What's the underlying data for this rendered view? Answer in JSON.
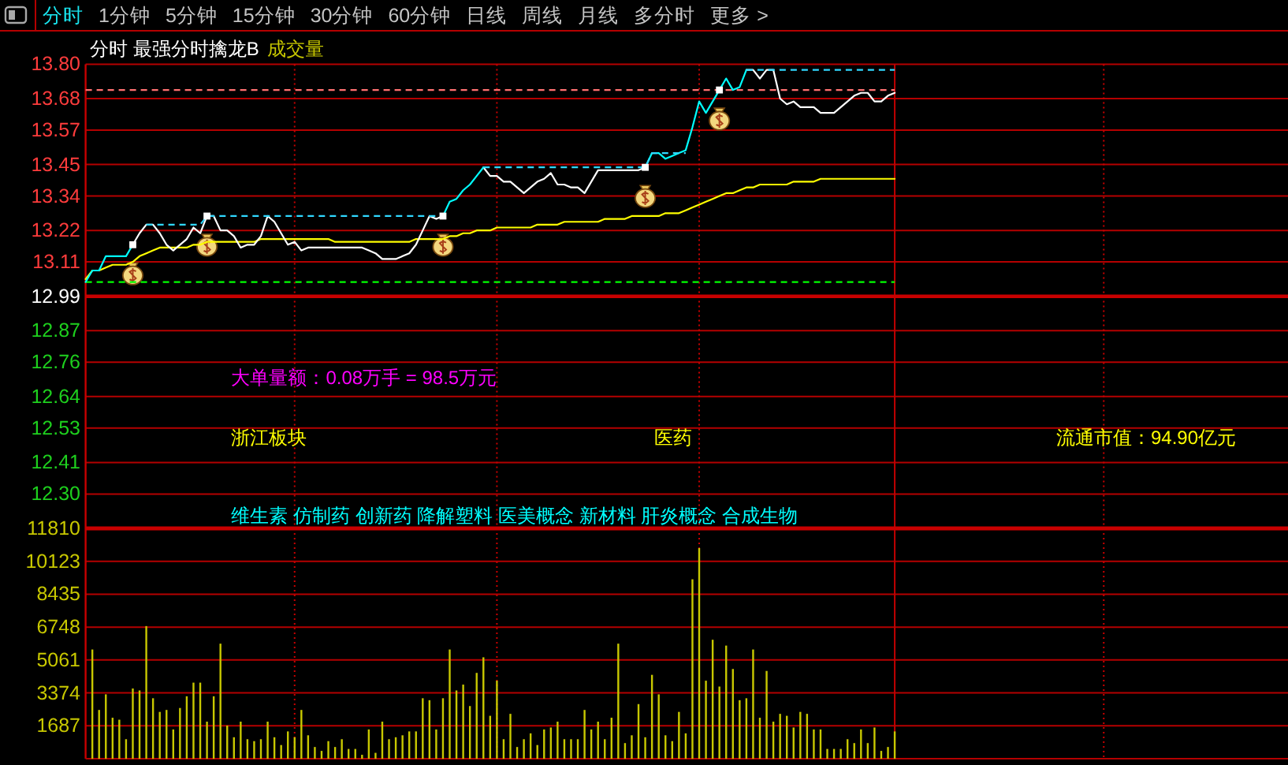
{
  "chart_data": [
    {
      "type": "line",
      "title": "分时 最强分时擒龙B",
      "categories": [
        null,
        null,
        null,
        null,
        null,
        null,
        null,
        null,
        null,
        null,
        null,
        null,
        null,
        null,
        null,
        null,
        null,
        null,
        null,
        null,
        null,
        null,
        null,
        null,
        null,
        null,
        null,
        null,
        null,
        null,
        null,
        null,
        null,
        null,
        null,
        null,
        null,
        null,
        null,
        null,
        null,
        null,
        null,
        null,
        null,
        null,
        null,
        null,
        null,
        null,
        null,
        null,
        null,
        null,
        null,
        null,
        null,
        null,
        null,
        null,
        null,
        null,
        null,
        null,
        null,
        null,
        null,
        null,
        null,
        null,
        null,
        null,
        null,
        null,
        null,
        null,
        null,
        null,
        null,
        null,
        null,
        null,
        null,
        null,
        null,
        null,
        null,
        null,
        null,
        null,
        null,
        null,
        null,
        null,
        null,
        null,
        null,
        null,
        null,
        null,
        null,
        null,
        null,
        null,
        null,
        null,
        null,
        null,
        null,
        null,
        null,
        null,
        null,
        null,
        null,
        null,
        null,
        null,
        null,
        null,
        null,
        null,
        null,
        null,
        null,
        null,
        null,
        null,
        null,
        null,
        null,
        null,
        null,
        null,
        null,
        null,
        null,
        null,
        null,
        null,
        null,
        null,
        null,
        null,
        null,
        null,
        null,
        null,
        null,
        null,
        null,
        null,
        null,
        null,
        null,
        null,
        null,
        null,
        null,
        null,
        null,
        null,
        null,
        null,
        null,
        null,
        null,
        null,
        null,
        null,
        null,
        null,
        null,
        null,
        null,
        null,
        null,
        null,
        null
      ],
      "series": [
        {
          "color": "#ff7070",
          "line_style": "dashed",
          "values": [
            13.71,
            13.71,
            13.71,
            13.71,
            13.71,
            13.71,
            13.71,
            13.71,
            13.71,
            13.71,
            13.71,
            13.71,
            13.71,
            13.71,
            13.71,
            13.71,
            13.71,
            13.71,
            13.71,
            13.71,
            13.71,
            13.71,
            13.71,
            13.71,
            13.71,
            13.71,
            13.71,
            13.71,
            13.71,
            13.71,
            13.71,
            13.71,
            13.71,
            13.71,
            13.71,
            13.71,
            13.71,
            13.71,
            13.71,
            13.71,
            13.71,
            13.71,
            13.71,
            13.71,
            13.71,
            13.71,
            13.71,
            13.71,
            13.71,
            13.71,
            13.71,
            13.71,
            13.71,
            13.71,
            13.71,
            13.71,
            13.71,
            13.71,
            13.71,
            13.71,
            13.71,
            13.71,
            13.71,
            13.71,
            13.71,
            13.71,
            13.71,
            13.71,
            13.71,
            13.71,
            13.71,
            13.71,
            13.71,
            13.71,
            13.71,
            13.71,
            13.71,
            13.71,
            13.71,
            13.71,
            13.71,
            13.71,
            13.71,
            13.71,
            13.71,
            13.71,
            13.71,
            13.71,
            13.71,
            13.71,
            13.71,
            13.71,
            13.71,
            13.71,
            13.71,
            13.71,
            13.71,
            13.71,
            13.71,
            13.71,
            13.71,
            13.71,
            13.71,
            13.71,
            13.71,
            13.71,
            13.71,
            13.71,
            13.71,
            13.71,
            13.71,
            13.71,
            13.71,
            13.71,
            13.71,
            13.71,
            13.71,
            13.71,
            13.71,
            13.71,
            13.71,
            null,
            null,
            null,
            null,
            null,
            null,
            null,
            null,
            null,
            null,
            null,
            null,
            null,
            null,
            null,
            null,
            null,
            null,
            null,
            null,
            null,
            null,
            null,
            null,
            null,
            null,
            null,
            null,
            null,
            null,
            null,
            null,
            null,
            null,
            null,
            null,
            null,
            null,
            null,
            null,
            null,
            null,
            null,
            null,
            null,
            null,
            null,
            null,
            null,
            null,
            null,
            null,
            null,
            null,
            null,
            null,
            null,
            null
          ]
        },
        {
          "color": "#00ff00",
          "line_style": "dashed",
          "values": [
            13.04,
            13.04,
            13.04,
            13.04,
            13.04,
            13.04,
            13.04,
            13.04,
            13.04,
            13.04,
            13.04,
            13.04,
            13.04,
            13.04,
            13.04,
            13.04,
            13.04,
            13.04,
            13.04,
            13.04,
            13.04,
            13.04,
            13.04,
            13.04,
            13.04,
            13.04,
            13.04,
            13.04,
            13.04,
            13.04,
            13.04,
            13.04,
            13.04,
            13.04,
            13.04,
            13.04,
            13.04,
            13.04,
            13.04,
            13.04,
            13.04,
            13.04,
            13.04,
            13.04,
            13.04,
            13.04,
            13.04,
            13.04,
            13.04,
            13.04,
            13.04,
            13.04,
            13.04,
            13.04,
            13.04,
            13.04,
            13.04,
            13.04,
            13.04,
            13.04,
            13.04,
            13.04,
            13.04,
            13.04,
            13.04,
            13.04,
            13.04,
            13.04,
            13.04,
            13.04,
            13.04,
            13.04,
            13.04,
            13.04,
            13.04,
            13.04,
            13.04,
            13.04,
            13.04,
            13.04,
            13.04,
            13.04,
            13.04,
            13.04,
            13.04,
            13.04,
            13.04,
            13.04,
            13.04,
            13.04,
            13.04,
            13.04,
            13.04,
            13.04,
            13.04,
            13.04,
            13.04,
            13.04,
            13.04,
            13.04,
            13.04,
            13.04,
            13.04,
            13.04,
            13.04,
            13.04,
            13.04,
            13.04,
            13.04,
            13.04,
            13.04,
            13.04,
            13.04,
            13.04,
            13.04,
            13.04,
            13.04,
            13.04,
            13.04,
            13.04,
            13.04,
            null,
            null,
            null,
            null,
            null,
            null,
            null,
            null,
            null,
            null,
            null,
            null,
            null,
            null,
            null,
            null,
            null,
            null,
            null,
            null,
            null,
            null,
            null,
            null,
            null,
            null,
            null,
            null,
            null,
            null,
            null,
            null,
            null,
            null,
            null,
            null,
            null,
            null,
            null,
            null,
            null,
            null,
            null,
            null,
            null,
            null,
            null,
            null,
            null,
            null,
            null,
            null,
            null,
            null,
            null,
            null,
            null,
            null
          ]
        },
        {
          "color": "#ffff00",
          "values": [
            13.05,
            13.08,
            13.08,
            13.09,
            13.1,
            13.1,
            13.1,
            13.11,
            13.13,
            13.14,
            13.15,
            13.16,
            13.16,
            13.16,
            13.16,
            13.16,
            13.17,
            13.17,
            13.18,
            13.18,
            13.18,
            13.18,
            13.18,
            13.18,
            13.18,
            13.18,
            13.19,
            13.19,
            13.19,
            13.19,
            13.19,
            13.19,
            13.19,
            13.19,
            13.19,
            13.19,
            13.19,
            13.18,
            13.18,
            13.18,
            13.18,
            13.18,
            13.18,
            13.18,
            13.18,
            13.18,
            13.18,
            13.18,
            13.18,
            13.19,
            13.19,
            13.19,
            13.19,
            13.19,
            13.2,
            13.2,
            13.21,
            13.21,
            13.22,
            13.22,
            13.22,
            13.23,
            13.23,
            13.23,
            13.23,
            13.23,
            13.23,
            13.24,
            13.24,
            13.24,
            13.24,
            13.25,
            13.25,
            13.25,
            13.25,
            13.25,
            13.25,
            13.26,
            13.26,
            13.26,
            13.26,
            13.27,
            13.27,
            13.27,
            13.27,
            13.27,
            13.28,
            13.28,
            13.28,
            13.29,
            13.3,
            13.31,
            13.32,
            13.33,
            13.34,
            13.35,
            13.35,
            13.36,
            13.37,
            13.37,
            13.38,
            13.38,
            13.38,
            13.38,
            13.38,
            13.39,
            13.39,
            13.39,
            13.39,
            13.4,
            13.4,
            13.4,
            13.4,
            13.4,
            13.4,
            13.4,
            13.4,
            13.4,
            13.4,
            13.4,
            13.4,
            null,
            null,
            null,
            null,
            null,
            null,
            null,
            null,
            null,
            null,
            null,
            null,
            null,
            null,
            null,
            null,
            null,
            null,
            null,
            null,
            null,
            null,
            null,
            null,
            null,
            null,
            null,
            null,
            null,
            null,
            null,
            null,
            null,
            null,
            null,
            null,
            null,
            null,
            null,
            null,
            null,
            null,
            null,
            null,
            null,
            null,
            null,
            null,
            null,
            null,
            null,
            null,
            null,
            null,
            null,
            null,
            null,
            null
          ]
        },
        {
          "color": "#ffffff",
          "values": [
            null,
            null,
            null,
            null,
            null,
            null,
            null,
            13.17,
            13.21,
            13.24,
            13.24,
            13.21,
            13.17,
            13.15,
            13.17,
            13.19,
            13.23,
            13.21,
            13.27,
            13.27,
            13.22,
            13.22,
            13.2,
            13.16,
            13.17,
            13.17,
            13.2,
            13.27,
            13.25,
            13.21,
            13.17,
            13.18,
            13.15,
            13.16,
            13.16,
            13.16,
            13.16,
            13.16,
            13.16,
            13.16,
            13.16,
            13.16,
            13.15,
            13.14,
            13.12,
            13.12,
            13.12,
            13.13,
            13.14,
            13.17,
            13.22,
            13.27,
            13.26,
            13.27,
            null,
            null,
            null,
            null,
            null,
            13.44,
            13.41,
            13.41,
            13.39,
            13.39,
            13.37,
            13.35,
            13.37,
            13.39,
            13.4,
            13.42,
            13.38,
            13.38,
            13.37,
            13.37,
            13.35,
            13.39,
            13.43,
            13.43,
            13.43,
            13.43,
            13.43,
            13.43,
            13.43,
            13.44,
            null,
            null,
            null,
            null,
            null,
            null,
            null,
            null,
            null,
            null,
            null,
            null,
            null,
            null,
            13.78,
            13.78,
            13.75,
            13.78,
            13.78,
            13.68,
            13.66,
            13.67,
            13.65,
            13.65,
            13.65,
            13.63,
            13.63,
            13.63,
            13.65,
            13.67,
            13.69,
            13.7,
            13.7,
            13.67,
            13.67,
            13.69,
            13.7,
            null,
            null,
            null,
            null,
            null,
            null,
            null,
            null,
            null,
            null,
            null,
            null,
            null,
            null,
            null,
            null,
            null,
            null,
            null,
            null,
            null,
            null,
            null,
            null,
            null,
            null,
            null,
            null,
            null,
            null,
            null,
            null,
            null,
            null,
            null,
            null,
            null,
            null,
            null,
            null,
            null,
            null,
            null,
            null,
            null,
            null,
            null,
            null,
            null,
            null,
            null,
            null,
            null,
            null,
            null,
            null,
            null,
            null
          ]
        },
        {
          "color": "#00ffff",
          "values": [
            13.04,
            13.08,
            13.08,
            13.13,
            13.13,
            13.13,
            13.13,
            13.17,
            null,
            null,
            null,
            null,
            null,
            null,
            null,
            null,
            null,
            null,
            null,
            null,
            null,
            null,
            null,
            null,
            null,
            null,
            null,
            null,
            null,
            null,
            null,
            null,
            null,
            null,
            null,
            null,
            null,
            null,
            null,
            null,
            null,
            null,
            null,
            null,
            null,
            null,
            null,
            null,
            null,
            null,
            null,
            null,
            null,
            13.27,
            13.32,
            13.33,
            13.36,
            13.38,
            13.41,
            13.44,
            null,
            null,
            null,
            null,
            null,
            null,
            null,
            null,
            null,
            null,
            null,
            null,
            null,
            null,
            null,
            null,
            null,
            null,
            null,
            null,
            null,
            null,
            null,
            13.44,
            13.49,
            13.49,
            13.47,
            13.48,
            13.49,
            13.5,
            13.58,
            13.67,
            13.63,
            13.67,
            13.71,
            13.75,
            13.71,
            13.72,
            13.78,
            null,
            null,
            null,
            null,
            null,
            null,
            null,
            null,
            null,
            null,
            null,
            null,
            null,
            null,
            null,
            null,
            null,
            null,
            null,
            null,
            null,
            null,
            null,
            null,
            null,
            null,
            null,
            null,
            null,
            null,
            null,
            null,
            null,
            null,
            null,
            null,
            null,
            null,
            null,
            null,
            null,
            null,
            null,
            null,
            null,
            null,
            null,
            null,
            null,
            null,
            null,
            null,
            null,
            null,
            null,
            null,
            null,
            null,
            null,
            null,
            null,
            null,
            null,
            null,
            null,
            null,
            null,
            null,
            null,
            null,
            null,
            null,
            null,
            null,
            null,
            null,
            null,
            null,
            null,
            null
          ]
        },
        {
          "color": "#30d8ff",
          "line_style": "dashed",
          "values": [
            null,
            null,
            null,
            null,
            null,
            null,
            null,
            null,
            null,
            13.24,
            13.24,
            13.24,
            13.24,
            13.24,
            13.24,
            13.24,
            13.24,
            13.24,
            13.27,
            13.27,
            13.27,
            13.27,
            13.27,
            13.27,
            13.27,
            13.27,
            13.27,
            13.27,
            13.27,
            13.27,
            13.27,
            13.27,
            13.27,
            13.27,
            13.27,
            13.27,
            13.27,
            13.27,
            13.27,
            13.27,
            13.27,
            13.27,
            13.27,
            13.27,
            13.27,
            13.27,
            13.27,
            13.27,
            13.27,
            13.27,
            13.27,
            13.27,
            13.27,
            13.27,
            null,
            null,
            null,
            null,
            null,
            13.44,
            13.44,
            13.44,
            13.44,
            13.44,
            13.44,
            13.44,
            13.44,
            13.44,
            13.44,
            13.44,
            13.44,
            13.44,
            13.44,
            13.44,
            13.44,
            13.44,
            13.44,
            13.44,
            13.44,
            13.44,
            13.44,
            13.44,
            13.44,
            13.44,
            13.49,
            13.49,
            13.49,
            13.49,
            13.49,
            13.49,
            null,
            null,
            null,
            null,
            null,
            null,
            null,
            null,
            13.78,
            13.78,
            13.78,
            13.78,
            13.78,
            13.78,
            13.78,
            13.78,
            13.78,
            13.78,
            13.78,
            13.78,
            13.78,
            13.78,
            13.78,
            13.78,
            13.78,
            13.78,
            13.78,
            13.78,
            13.78,
            13.78,
            13.78,
            null,
            null,
            null,
            null,
            null,
            null,
            null,
            null,
            null,
            null,
            null,
            null,
            null,
            null,
            null,
            null,
            null,
            null,
            null,
            null,
            null,
            null,
            null,
            null,
            null,
            null,
            null,
            null,
            null,
            null,
            null,
            null,
            null,
            null,
            null,
            null,
            null,
            null,
            null,
            null,
            null,
            null,
            null,
            null,
            null,
            null,
            null,
            null,
            null,
            null,
            null,
            null,
            null,
            null,
            null,
            null,
            null,
            null
          ]
        },
        {
          "type": "scatter",
          "color": "#ffffff",
          "marker": "square",
          "values": [
            null,
            null,
            null,
            null,
            null,
            null,
            null,
            13.17,
            null,
            null,
            null,
            null,
            null,
            null,
            null,
            null,
            null,
            null,
            13.27,
            null,
            null,
            null,
            null,
            null,
            null,
            null,
            null,
            null,
            null,
            null,
            null,
            null,
            null,
            null,
            null,
            null,
            null,
            null,
            null,
            null,
            null,
            null,
            null,
            null,
            null,
            null,
            null,
            null,
            null,
            null,
            null,
            null,
            null,
            13.27,
            null,
            null,
            null,
            null,
            null,
            null,
            null,
            null,
            null,
            null,
            null,
            null,
            null,
            null,
            null,
            null,
            null,
            null,
            null,
            null,
            null,
            null,
            null,
            null,
            null,
            null,
            null,
            null,
            null,
            13.44,
            null,
            null,
            null,
            null,
            null,
            null,
            null,
            null,
            null,
            null,
            13.71,
            null,
            null,
            null,
            null,
            null,
            null,
            null,
            null,
            null,
            null,
            null,
            null,
            null,
            null,
            null,
            null,
            null,
            null,
            null,
            null,
            null,
            null,
            null,
            null,
            null,
            null,
            null,
            null,
            null,
            null,
            null,
            null,
            null,
            null,
            null,
            null,
            null,
            null,
            null,
            null,
            null,
            null,
            null,
            null,
            null,
            null,
            null,
            null,
            null,
            null,
            null,
            null,
            null,
            null,
            null,
            null,
            null,
            null,
            null,
            null,
            null,
            null,
            null,
            null,
            null,
            null,
            null,
            null,
            null,
            null,
            null,
            null,
            null,
            null,
            null,
            null,
            null,
            null,
            null,
            null,
            null,
            null,
            null,
            null
          ]
        }
      ],
      "ylim": [
        12.18,
        13.8
      ],
      "yticks": [
        {
          "value": 13.8,
          "label": "13.80"
        },
        13.68,
        13.57,
        13.45,
        13.34,
        13.22,
        13.11,
        12.99,
        12.87,
        12.76,
        12.64,
        12.53,
        12.41,
        {
          "value": 12.3,
          "label": "12.30"
        }
      ],
      "grid": true,
      "ref_lines": [
        {
          "axis": "y",
          "value": 12.99,
          "color": "#c80000"
        }
      ],
      "annotations": [
        "分时",
        "1分钟",
        "5分钟",
        "15分钟",
        "30分钟",
        "60分钟",
        "日线",
        "周线",
        "月线",
        "多分时",
        "更多 >",
        "大单量额：0.08万手 = 98.5万元",
        "浙江板块",
        "医药",
        "流通市值：94.90亿元",
        "维生素 仿制药 创新药 降解塑料 医美概念 新材料 肝炎概念 合成生物"
      ]
    },
    {
      "type": "bar",
      "categories": [
        null,
        null,
        null,
        null,
        null,
        null,
        null,
        null,
        null,
        null,
        null,
        null,
        null,
        null,
        null,
        null,
        null,
        null,
        null,
        null,
        null,
        null,
        null,
        null,
        null,
        null,
        null,
        null,
        null,
        null,
        null,
        null,
        null,
        null,
        null,
        null,
        null,
        null,
        null,
        null,
        null,
        null,
        null,
        null,
        null,
        null,
        null,
        null,
        null,
        null,
        null,
        null,
        null,
        null,
        null,
        null,
        null,
        null,
        null,
        null,
        null,
        null,
        null,
        null,
        null,
        null,
        null,
        null,
        null,
        null,
        null,
        null,
        null,
        null,
        null,
        null,
        null,
        null,
        null,
        null,
        null,
        null,
        null,
        null,
        null,
        null,
        null,
        null,
        null,
        null,
        null,
        null,
        null,
        null,
        null,
        null,
        null,
        null,
        null,
        null,
        null,
        null,
        null,
        null,
        null,
        null,
        null,
        null,
        null,
        null,
        null,
        null,
        null,
        null,
        null,
        null,
        null,
        null,
        null,
        null,
        null,
        null,
        null,
        null,
        null,
        null,
        null,
        null,
        null,
        null,
        null,
        null,
        null,
        null,
        null,
        null,
        null,
        null,
        null,
        null,
        null,
        null,
        null,
        null,
        null,
        null,
        null,
        null,
        null,
        null,
        null,
        null,
        null,
        null,
        null,
        null,
        null,
        null,
        null,
        null,
        null,
        null,
        null,
        null,
        null,
        null,
        null,
        null,
        null,
        null,
        null,
        null,
        null,
        null,
        null,
        null,
        null,
        null,
        null
      ],
      "series": [
        {
          "name": "成交量",
          "color": "#c8c800",
          "values": [
            null,
            5600,
            2500,
            3300,
            2100,
            2000,
            1000,
            3600,
            3500,
            6800,
            3100,
            2400,
            2500,
            1500,
            2600,
            3200,
            3900,
            3900,
            1900,
            3200,
            5900,
            1700,
            1100,
            1900,
            1000,
            900,
            1000,
            1900,
            1100,
            700,
            1400,
            1100,
            2500,
            1200,
            600,
            400,
            900,
            600,
            1000,
            500,
            500,
            200,
            1500,
            300,
            1900,
            1000,
            1100,
            1200,
            1400,
            1400,
            3100,
            3000,
            1500,
            3100,
            5600,
            3500,
            3800,
            2700,
            4400,
            5200,
            2200,
            4000,
            1000,
            2300,
            600,
            1000,
            1300,
            700,
            1500,
            1600,
            1900,
            1000,
            1000,
            1000,
            2500,
            1500,
            1900,
            1000,
            2100,
            5900,
            800,
            1200,
            2800,
            1100,
            4300,
            3300,
            1200,
            900,
            2400,
            1300,
            9200,
            10800,
            4000,
            6100,
            3700,
            5800,
            4600,
            3000,
            3100,
            5600,
            2100,
            4500,
            1900,
            2300,
            2200,
            1600,
            2400,
            2300,
            1500,
            1500,
            500,
            500,
            500,
            1000,
            800,
            1500,
            800,
            1600,
            400,
            600,
            1400,
            null,
            null,
            null,
            null,
            null,
            null,
            null,
            null,
            null,
            null,
            null,
            null,
            null,
            null,
            null,
            null,
            null,
            null,
            null,
            null,
            null,
            null,
            null,
            null,
            null,
            null,
            null,
            null,
            null,
            null,
            null,
            null,
            null,
            null,
            null,
            null,
            null,
            null,
            null,
            null,
            null,
            null,
            null,
            null,
            null,
            null,
            null,
            null,
            null,
            null,
            null,
            null,
            null,
            null,
            null,
            null,
            null,
            null
          ]
        }
      ],
      "ylim": [
        0,
        11810
      ],
      "yticks": [
        1687,
        3374,
        5061,
        6748,
        8435,
        10123,
        11810
      ],
      "grid": true
    }
  ]
}
